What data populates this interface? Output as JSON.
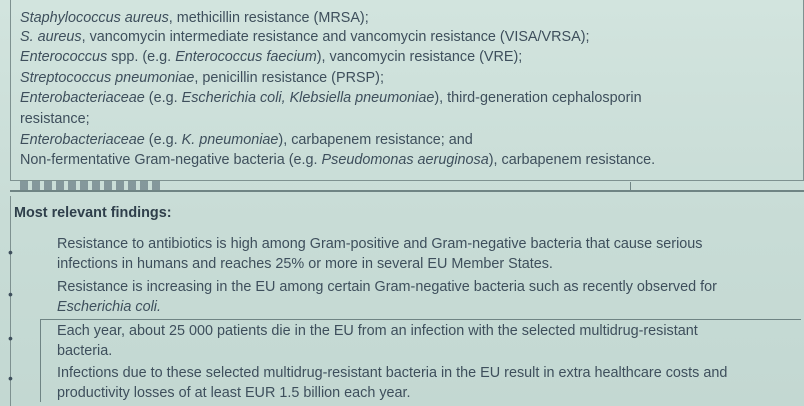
{
  "top_list": [
    {
      "it1": "Staphylococcus aureus",
      "t1": ", methicillin resistance (MRSA);"
    },
    {
      "it1": "S. aureus",
      "t1": ", vancomycin intermediate resistance and vancomycin resistance (VISA/VRSA);"
    },
    {
      "it1": "Enterococcus",
      "t1": " spp. (e.g. ",
      "it2": "Enterococcus faecium",
      "t2": "), vancomycin resistance (VRE);"
    },
    {
      "it1": "Streptococcus pneumoniae",
      "t1": ", penicillin resistance (PRSP);"
    },
    {
      "it1": "Enterobacteriaceae",
      "t1": " (e.g. ",
      "it2": "Escherichia coli, Klebsiella pneumoniae",
      "t2": "), third-generation cephalosporin"
    },
    {
      "t1": "resistance;"
    },
    {
      "it1": "Enterobacteriaceae",
      "t1": " (e.g. ",
      "it2": "K. pneumoniae",
      "t2": "), carbapenem resistance; and"
    },
    {
      "t1": "Non-fermentative Gram-negative bacteria (e.g. ",
      "it2": "Pseudomonas aeruginosa",
      "t2": "), carbapenem resistance."
    }
  ],
  "findings": {
    "title": "Most relevant findings:",
    "bullet_symbol": "•",
    "items": [
      {
        "l1": "Resistance to antibiotics is high among Gram-positive and Gram-negative bacteria that cause serious",
        "l2": "infections in humans and reaches 25% or more in several EU Member States."
      },
      {
        "l1": "Resistance is increasing in the EU among certain Gram-negative bacteria such as recently observed for",
        "l2_it": "Escherichia coli."
      },
      {
        "l1": "Each year, about 25 000 patients die in the EU from an infection with the selected multidrug-resistant",
        "l2": "bacteria."
      },
      {
        "l1": "Infections due to these selected multidrug-resistant bacteria in the EU result in extra healthcare costs and",
        "l2": "productivity losses of at least EUR 1.5 billion each year."
      }
    ]
  }
}
